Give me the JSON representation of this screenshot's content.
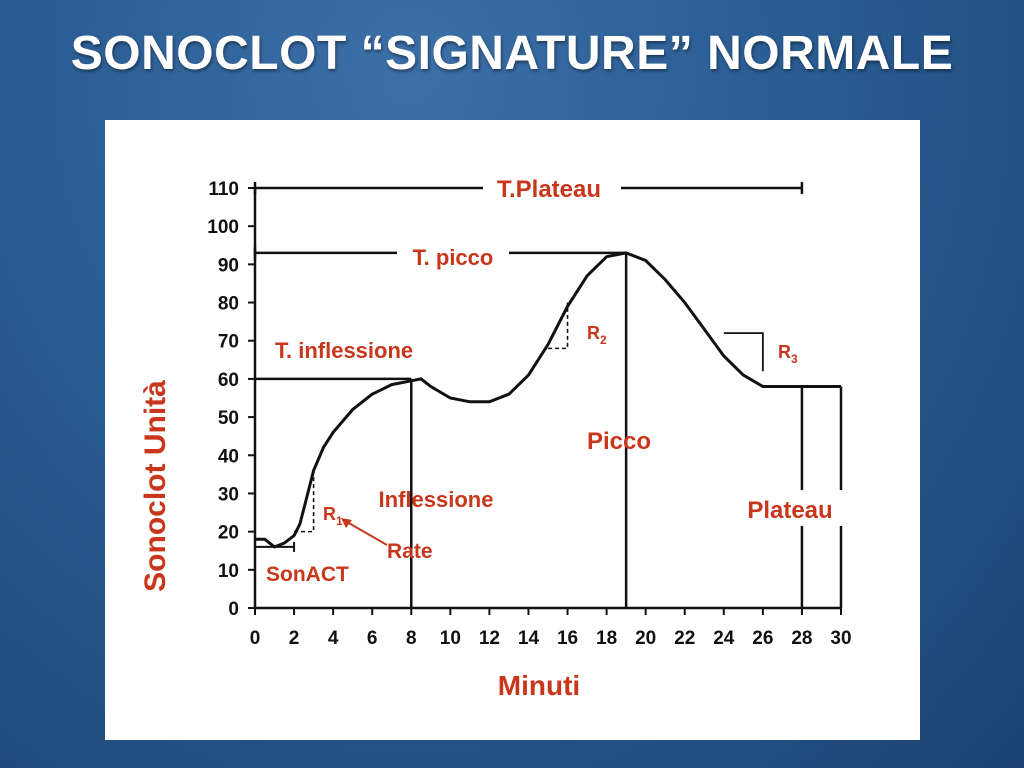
{
  "slide": {
    "title": "SONOCLOT “SIGNATURE” NORMALE"
  },
  "colors": {
    "background": "#2a5c93",
    "annotation": "#c8361b",
    "line": "#111111",
    "panel": "#ffffff"
  },
  "chart_data": {
    "type": "line",
    "title": "",
    "xlabel": "Minuti",
    "ylabel": "Sonoclot Unità",
    "xlim": [
      0,
      30
    ],
    "ylim": [
      0,
      110
    ],
    "x_ticks": [
      0,
      2,
      4,
      6,
      8,
      10,
      12,
      14,
      16,
      18,
      20,
      22,
      24,
      26,
      28,
      30
    ],
    "y_ticks": [
      0,
      10,
      20,
      30,
      40,
      50,
      60,
      70,
      80,
      90,
      100,
      110
    ],
    "grid": false,
    "series": [
      {
        "x": [
          0,
          0.5,
          1,
          1.5,
          2,
          2.3,
          2.6,
          3,
          3.5,
          4,
          5,
          6,
          7,
          8,
          8.5,
          9,
          10,
          11,
          12,
          13,
          14,
          15,
          16,
          17,
          18,
          19,
          20,
          21,
          22,
          23,
          24,
          25,
          26,
          27,
          28,
          29,
          30
        ],
        "y": [
          18,
          18,
          16,
          17,
          19,
          22,
          28,
          36,
          42,
          46,
          52,
          56,
          58.5,
          59.5,
          60,
          58,
          55,
          54,
          54,
          56,
          61,
          69,
          79,
          87,
          92,
          93,
          91,
          86,
          80,
          73,
          66,
          61,
          58,
          58,
          58,
          58,
          58
        ]
      }
    ],
    "annotations": {
      "t_plateau": "T.Plateau",
      "t_picco": "T. picco",
      "t_inflessione": "T. inflessione",
      "picco": "Picco",
      "inflessione": "Inflessione",
      "plateau": "Plateau",
      "rate": "Rate",
      "sonact": "SonACT",
      "r1": "R",
      "r1_sub": "1",
      "r2": "R",
      "r2_sub": "2",
      "r3": "R",
      "r3_sub": "3"
    }
  }
}
